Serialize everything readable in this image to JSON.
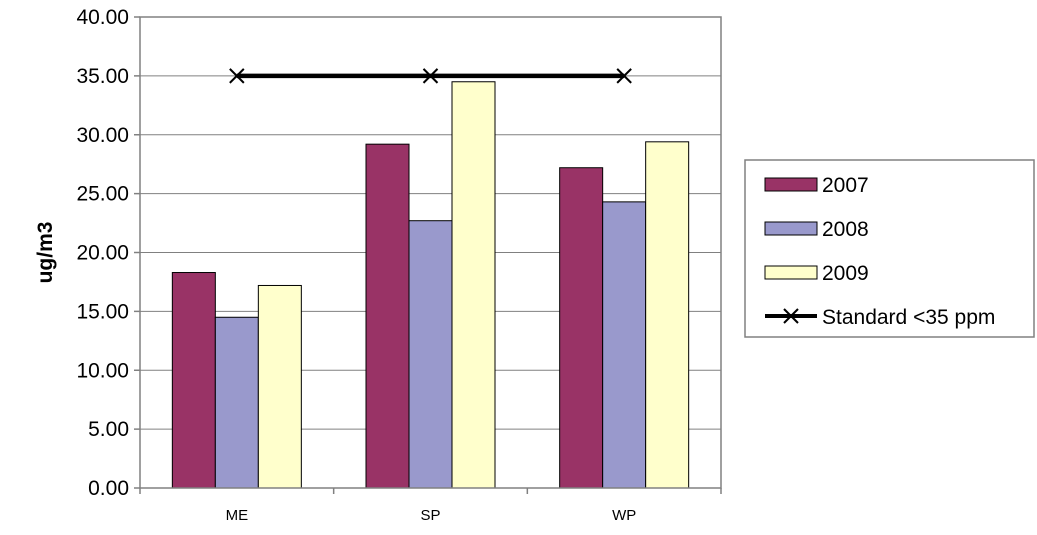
{
  "chart_data": {
    "type": "bar",
    "categories": [
      "ME",
      "SP",
      "WP"
    ],
    "series": [
      {
        "name": "2007",
        "values": [
          18.3,
          29.2,
          27.2
        ],
        "color": "#993366"
      },
      {
        "name": "2008",
        "values": [
          14.5,
          22.7,
          24.3
        ],
        "color": "#9999cc"
      },
      {
        "name": "2009",
        "values": [
          17.2,
          34.5,
          29.4
        ],
        "color": "#ffffcc"
      }
    ],
    "line_series": {
      "name": "Standard <35 ppm",
      "values": [
        35,
        35,
        35
      ],
      "color": "#000000",
      "marker": "x"
    },
    "ylabel": "ug/m3",
    "ylim": [
      0,
      40
    ],
    "yticks": [
      "0.00",
      "5.00",
      "10.00",
      "15.00",
      "20.00",
      "25.00",
      "30.00",
      "35.00",
      "40.00"
    ],
    "grid": true,
    "legend": "right"
  }
}
